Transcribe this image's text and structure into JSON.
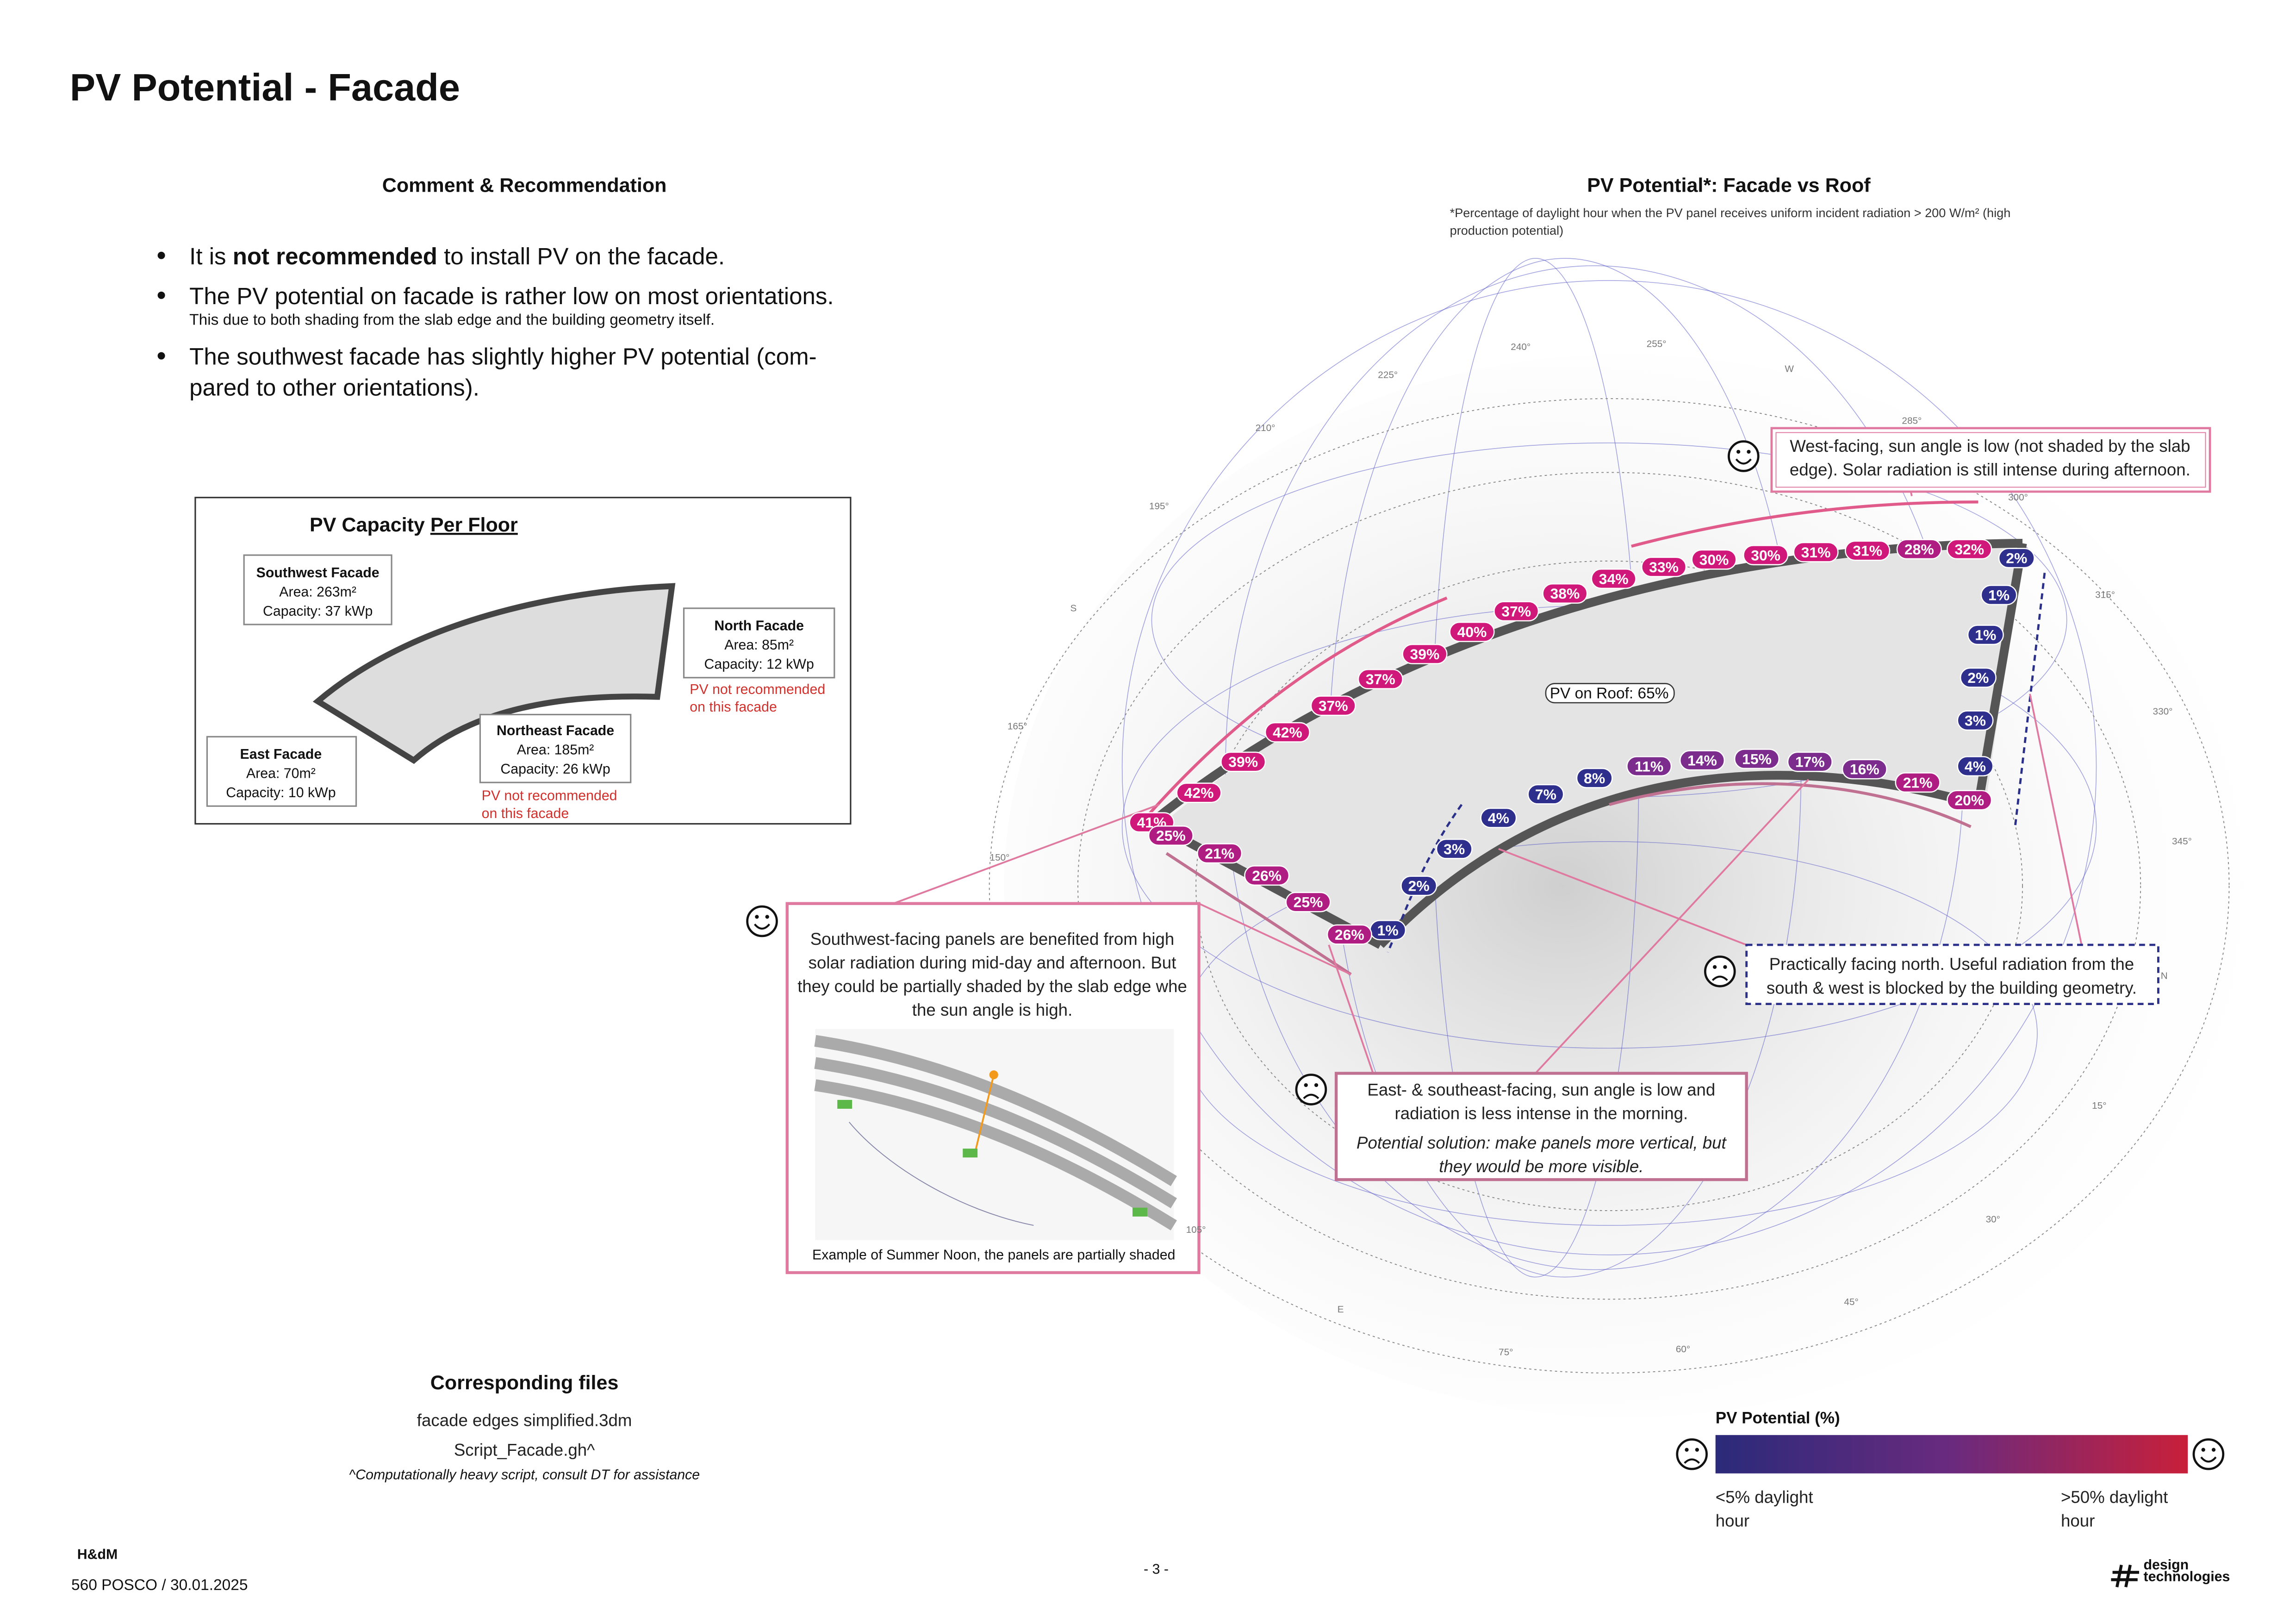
{
  "header": {
    "title": "PV Potential - Facade"
  },
  "comment": {
    "heading": "Comment & Recommendation",
    "bullet1": {
      "pre": "It is ",
      "bold": "not recommended",
      "post": " to install PV on the facade."
    },
    "bullet2": {
      "text": "The PV potential on facade is rather low on most orientations.",
      "note": "This due to both shading from the slab edge and the building geometry itself."
    },
    "bullet3": [
      "The southwest facade has slightly higher PV potential (com-",
      "pared to other orientations)."
    ]
  },
  "capacity": {
    "title_pre": "PV Capacity ",
    "title_u": "Per Floor",
    "facades": [
      {
        "name": "Southwest Facade",
        "area": "Area: 263m²",
        "capacity": "Capacity: 37 kWp"
      },
      {
        "name": "North Facade",
        "area": "Area: 85m²",
        "capacity": "Capacity: 12 kWp",
        "warning": [
          "PV not recommended",
          "on this facade"
        ]
      },
      {
        "name": "Northeast Facade",
        "area": "Area: 185m²",
        "capacity": "Capacity: 26 kWp",
        "warning": [
          "PV not recommended",
          "on this facade"
        ]
      },
      {
        "name": "East Facade",
        "area": "Area: 70m²",
        "capacity": "Capacity: 10 kWp"
      }
    ]
  },
  "files": {
    "heading": "Corresponding files",
    "items": [
      "facade edges simplified.3dm",
      "Script_Facade.gh^"
    ],
    "note": "^Computationally heavy script, consult DT for assistance"
  },
  "diagram": {
    "title": "PV Potential*: Facade vs Roof",
    "note": [
      "*Percentage of daylight hour when the PV panel receives uniform incident radiation > 200 W/m² (high",
      "production potential)"
    ],
    "roof": "PV on Roof: 65%",
    "compass": [
      "240°",
      "255°",
      "W",
      "225°",
      "210°",
      "195°",
      "S",
      "165°",
      "150°",
      "285°",
      "300°",
      "315°",
      "330°",
      "345°",
      "N",
      "15°",
      "30°",
      "45°",
      "60°",
      "75°",
      "E",
      "105°"
    ],
    "southwest_labels": [
      "41%",
      "42%",
      "39%",
      "42%",
      "37%",
      "37%",
      "39%",
      "40%",
      "37%",
      "38%",
      "34%",
      "33%",
      "30%",
      "30%",
      "31%",
      "31%",
      "28%",
      "32%"
    ],
    "north_labels": [
      "2%",
      "1%",
      "1%",
      "2%",
      "3%",
      "4%",
      "20%"
    ],
    "northeast_labels": [
      "21%",
      "16%",
      "17%",
      "15%",
      "14%",
      "11%",
      "8%",
      "7%",
      "4%",
      "3%",
      "2%",
      "1%"
    ],
    "east_labels": [
      "25%",
      "21%",
      "26%",
      "25%",
      "26%"
    ],
    "callouts": {
      "west": [
        "West-facing, sun angle is low (not shaded by the slab",
        "edge). Solar radiation is still intense during afternoon."
      ],
      "southwest": [
        "Southwest-facing panels are benefited from high",
        "solar radiation during mid-day and afternoon. But",
        "they could be partially shaded by the slab edge whe",
        "the sun angle is high."
      ],
      "southwest_caption": "Example of Summer Noon, the panels are partially shaded",
      "north": [
        "Practically facing north. Useful radiation from the",
        "south & west is blocked by the building geometry."
      ],
      "east": [
        "East- & southeast-facing, sun angle is low and",
        "radiation is less intense in the morning."
      ],
      "east_solution": [
        "Potential solution: make panels more vertical, but",
        "they would be more visible."
      ]
    }
  },
  "legend": {
    "title": "PV Potential (%)",
    "low": [
      "<5% daylight",
      "hour"
    ],
    "high": [
      ">50% daylight",
      "hour"
    ]
  },
  "footer": {
    "company": "H&dM",
    "project": "560 POSCO / 30.01.2025",
    "page": "- 3 -",
    "logo": [
      "design",
      "technologies"
    ]
  }
}
